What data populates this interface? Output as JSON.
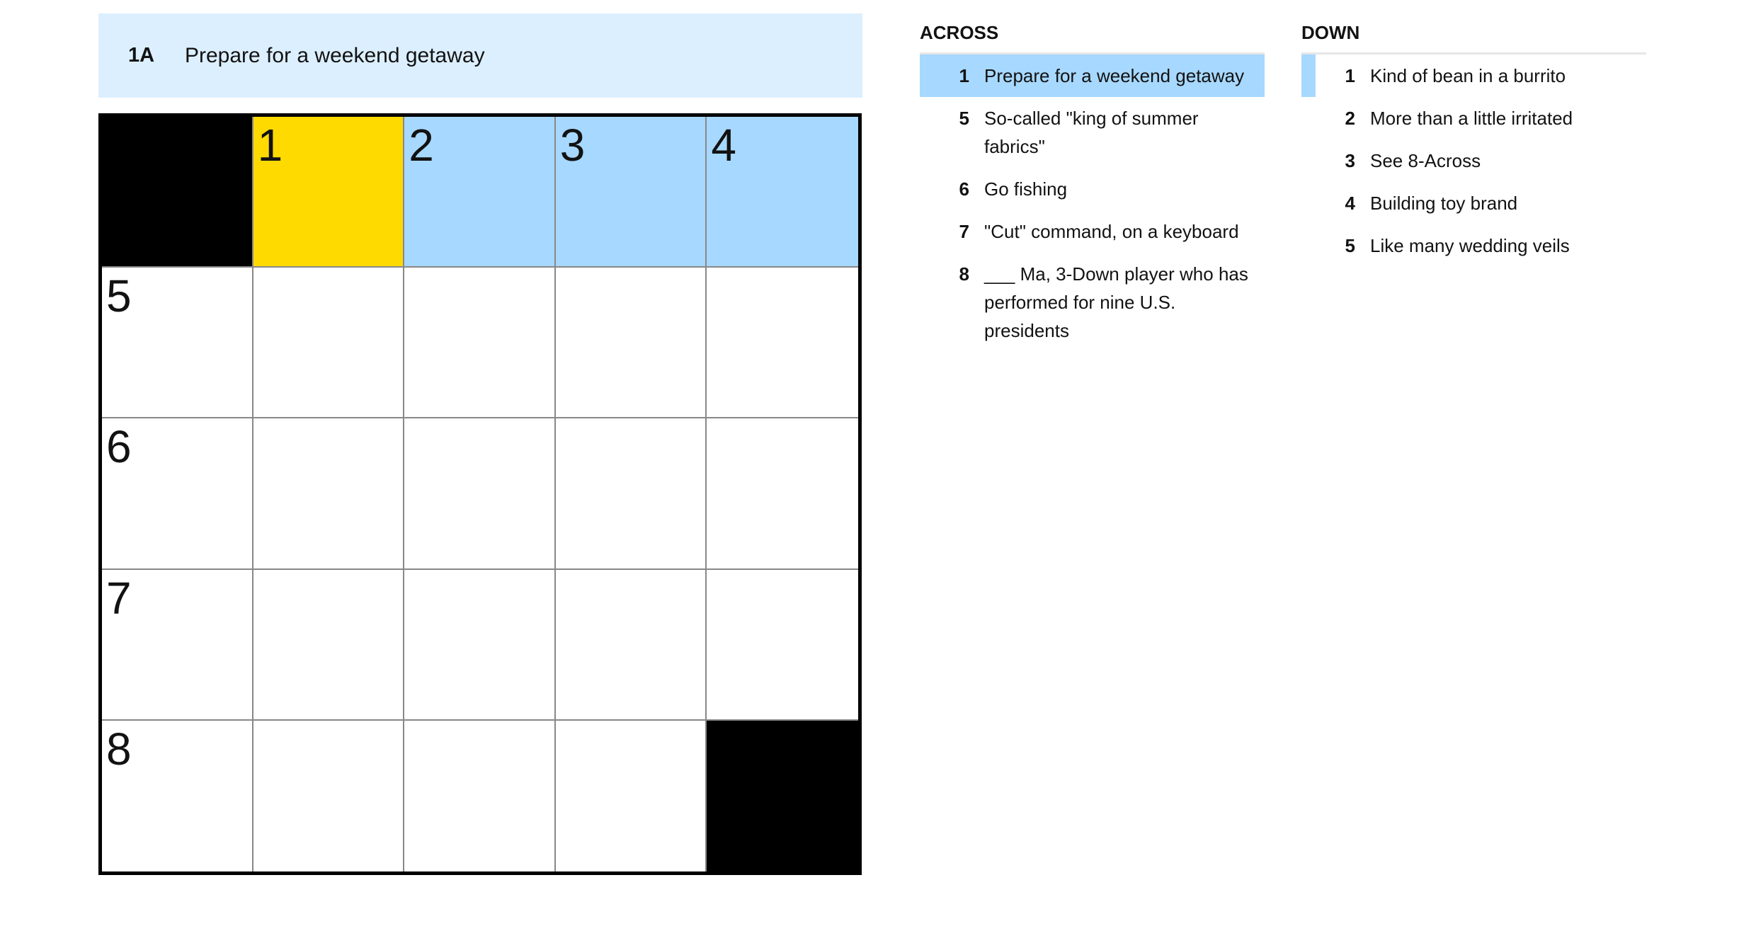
{
  "current_clue": {
    "label": "1A",
    "text": "Prepare for a weekend getaway"
  },
  "colors": {
    "selected": "#ffda00",
    "highlight": "#a7d8ff",
    "clue_bar": "#dcefff",
    "block": "#000000"
  },
  "grid": {
    "rows": [
      [
        {
          "type": "block"
        },
        {
          "type": "selected",
          "num": "1"
        },
        {
          "type": "highlight",
          "num": "2"
        },
        {
          "type": "highlight",
          "num": "3"
        },
        {
          "type": "highlight",
          "num": "4"
        }
      ],
      [
        {
          "type": "open",
          "num": "5"
        },
        {
          "type": "open"
        },
        {
          "type": "open"
        },
        {
          "type": "open"
        },
        {
          "type": "open"
        }
      ],
      [
        {
          "type": "open",
          "num": "6"
        },
        {
          "type": "open"
        },
        {
          "type": "open"
        },
        {
          "type": "open"
        },
        {
          "type": "open"
        }
      ],
      [
        {
          "type": "open",
          "num": "7"
        },
        {
          "type": "open"
        },
        {
          "type": "open"
        },
        {
          "type": "open"
        },
        {
          "type": "open"
        }
      ],
      [
        {
          "type": "open",
          "num": "8"
        },
        {
          "type": "open"
        },
        {
          "type": "open"
        },
        {
          "type": "open"
        },
        {
          "type": "block"
        }
      ]
    ]
  },
  "across": {
    "title": "ACROSS",
    "clues": [
      {
        "num": "1",
        "text": "Prepare for a weekend getaway",
        "state": "active"
      },
      {
        "num": "5",
        "text": "So-called \"king of summer fabrics\""
      },
      {
        "num": "6",
        "text": "Go fishing"
      },
      {
        "num": "7",
        "text": "\"Cut\" command, on a keyboard"
      },
      {
        "num": "8",
        "text": "___ Ma, 3-Down player who has performed for nine U.S. presidents"
      }
    ]
  },
  "down": {
    "title": "DOWN",
    "clues": [
      {
        "num": "1",
        "text": "Kind of bean in a burrito",
        "state": "cross"
      },
      {
        "num": "2",
        "text": "More than a little irritated"
      },
      {
        "num": "3",
        "text": "See 8-Across"
      },
      {
        "num": "4",
        "text": "Building toy brand"
      },
      {
        "num": "5",
        "text": "Like many wedding veils"
      }
    ]
  }
}
